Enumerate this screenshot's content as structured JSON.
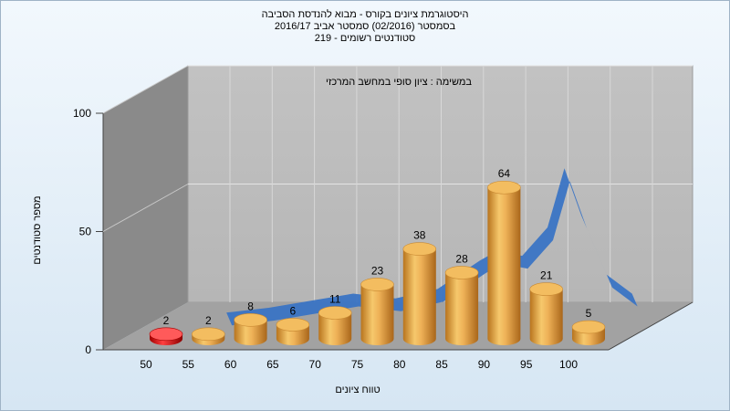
{
  "chart": {
    "title_line1": "היסטוגרמת ציונים בקורס - מבוא להנדסת הסביבה",
    "title_line2": "בסמסטר  (02/2016)  סמסטר אביב 2016/17",
    "title_line3": "סטודנטים רשומים - 219",
    "subtitle": "במשימה : ציון סופי במחשב המרכזי"
  },
  "chart_data": {
    "type": "bar",
    "title": "היסטוגרמת ציונים בקורס - מבוא להנדסת הסביבה",
    "subtitle": "במשימה : ציון סופי במחשב המרכזי",
    "xlabel": "טווח ציונים",
    "ylabel": "מספר סטודנטים",
    "x_ticks": [
      "50",
      "55",
      "60",
      "65",
      "70",
      "75",
      "80",
      "85",
      "90",
      "95",
      "100"
    ],
    "y_ticks": [
      "0",
      "50",
      "100"
    ],
    "ylim": [
      0,
      100
    ],
    "grid": true,
    "bars": [
      {
        "x": 50,
        "value": 2,
        "label": "2",
        "color": "#e21a1a"
      },
      {
        "x": 55,
        "value": 2,
        "label": "2",
        "color": "#e8a345"
      },
      {
        "x": 60,
        "value": 8,
        "label": "8",
        "color": "#e8a345"
      },
      {
        "x": 65,
        "value": 6,
        "label": "6",
        "color": "#e8a345"
      },
      {
        "x": 70,
        "value": 11,
        "label": "11",
        "color": "#e8a345"
      },
      {
        "x": 75,
        "value": 23,
        "label": "23",
        "color": "#e8a345"
      },
      {
        "x": 80,
        "value": 38,
        "label": "38",
        "color": "#e8a345"
      },
      {
        "x": 85,
        "value": 28,
        "label": "28",
        "color": "#e8a345"
      },
      {
        "x": 90,
        "value": 64,
        "label": "64",
        "color": "#e8a345"
      },
      {
        "x": 95,
        "value": 21,
        "label": "21",
        "color": "#e8a345"
      },
      {
        "x": 100,
        "value": 5,
        "label": "5",
        "color": "#e8a345"
      }
    ],
    "curve": {
      "color": "#3a74c4",
      "x": [
        55,
        60,
        65,
        70,
        75,
        80,
        85,
        87,
        90,
        93,
        95,
        97,
        100,
        103
      ],
      "y": [
        4,
        6,
        9,
        12,
        10,
        14,
        26,
        30,
        28,
        40,
        65,
        45,
        20,
        12
      ]
    }
  }
}
